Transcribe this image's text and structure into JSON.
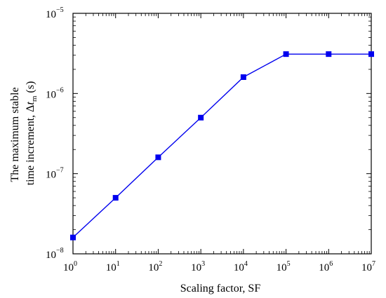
{
  "chart_data": {
    "type": "line",
    "xlabel": "Scaling factor, SF",
    "ylabel_line1": "The maximum stable",
    "ylabel_line2_prefix": "time increment, Δ",
    "ylabel_line2_var": "t",
    "ylabel_line2_sub": "m",
    "ylabel_line2_suffix": " (s)",
    "x_scale": "log",
    "y_scale": "log",
    "xlim": [
      1,
      10000000
    ],
    "ylim": [
      1e-08,
      1e-05
    ],
    "x_ticks": [
      {
        "base": "10",
        "exp": "0"
      },
      {
        "base": "10",
        "exp": "1"
      },
      {
        "base": "10",
        "exp": "2"
      },
      {
        "base": "10",
        "exp": "3"
      },
      {
        "base": "10",
        "exp": "4"
      },
      {
        "base": "10",
        "exp": "5"
      },
      {
        "base": "10",
        "exp": "6"
      },
      {
        "base": "10",
        "exp": "7"
      }
    ],
    "y_ticks": [
      {
        "base": "10",
        "exp": "−8"
      },
      {
        "base": "10",
        "exp": "−7"
      },
      {
        "base": "10",
        "exp": "−6"
      },
      {
        "base": "10",
        "exp": "−5"
      }
    ],
    "series": [
      {
        "color": "#0000ee",
        "marker": "square",
        "x": [
          1,
          10,
          100,
          1000,
          10000,
          100000,
          1000000,
          10000000
        ],
        "y": [
          1.6e-08,
          5e-08,
          1.6e-07,
          5e-07,
          1.6e-06,
          3.1e-06,
          3.1e-06,
          3.1e-06
        ]
      }
    ],
    "grid": false,
    "legend": "none"
  }
}
